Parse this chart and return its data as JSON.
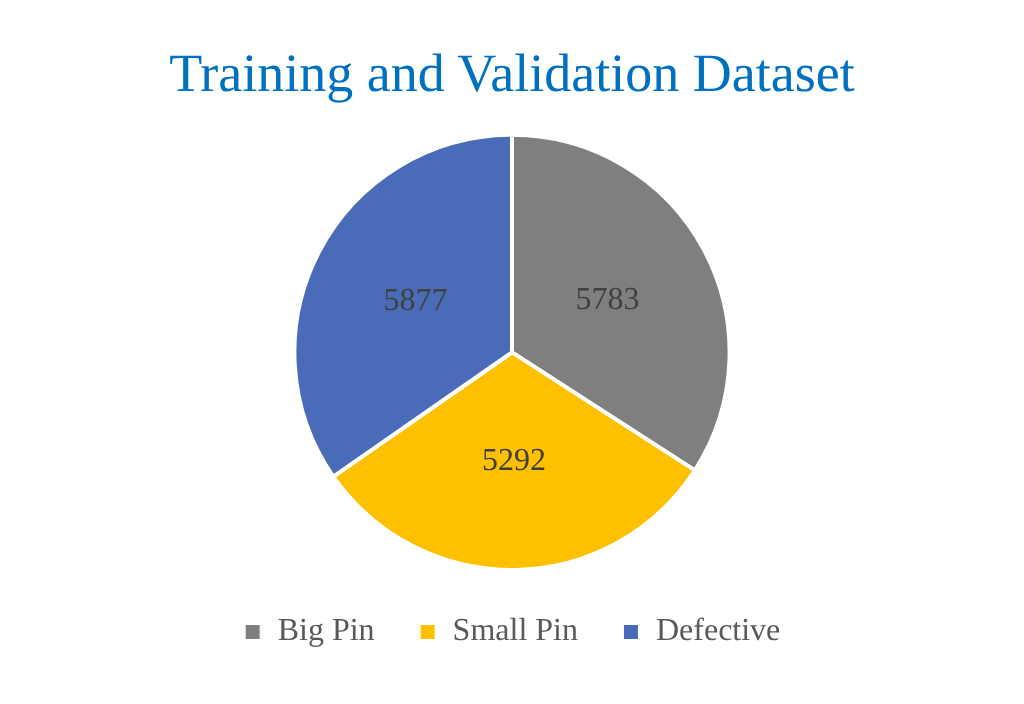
{
  "chart_data": {
    "type": "pie",
    "title": "Training and Validation Dataset",
    "categories": [
      "Big Pin",
      "Small Pin",
      "Defective"
    ],
    "values": [
      5783,
      5292,
      5877
    ],
    "colors": [
      "#7f7f7f",
      "#ffc000",
      "#4a6cb8"
    ],
    "data_labels": true,
    "legend": "bottom"
  }
}
